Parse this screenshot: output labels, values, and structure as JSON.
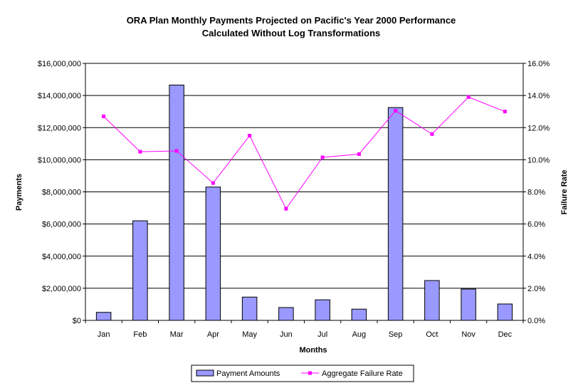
{
  "chart_data": {
    "type": "bar",
    "title_line1": "ORA Plan Monthly Payments Projected on Pacific's Year 2000 Performance",
    "title_line2": "Calculated Without Log Transformations",
    "xlabel": "Months",
    "ylabel": "Payments",
    "y2label": "Failure Rate",
    "categories": [
      "Jan",
      "Feb",
      "Mar",
      "Apr",
      "May",
      "Jun",
      "Jul",
      "Aug",
      "Sep",
      "Oct",
      "Nov",
      "Dec"
    ],
    "ylim": [
      0,
      16000000
    ],
    "y_ticks": [
      "$0",
      "$2,000,000",
      "$4,000,000",
      "$6,000,000",
      "$8,000,000",
      "$10,000,000",
      "$12,000,000",
      "$14,000,000",
      "$16,000,000"
    ],
    "y2lim": [
      0,
      16
    ],
    "y2_ticks": [
      "0.0%",
      "2.0%",
      "4.0%",
      "6.0%",
      "8.0%",
      "10.0%",
      "12.0%",
      "14.0%",
      "16.0%"
    ],
    "grid": true,
    "legend_position": "bottom",
    "series": [
      {
        "name": "Payment Amounts",
        "kind": "bar",
        "axis": "left",
        "color": "#9999ff",
        "values": [
          500000,
          6200000,
          14650000,
          8300000,
          1450000,
          800000,
          1280000,
          700000,
          13250000,
          2480000,
          1950000,
          1020000
        ]
      },
      {
        "name": "Aggregate Failure Rate",
        "kind": "line",
        "axis": "right",
        "color": "#ff00ff",
        "values": [
          12.7,
          10.5,
          10.55,
          8.55,
          11.5,
          6.95,
          10.15,
          10.35,
          13.05,
          11.6,
          13.9,
          13.0
        ]
      }
    ]
  }
}
